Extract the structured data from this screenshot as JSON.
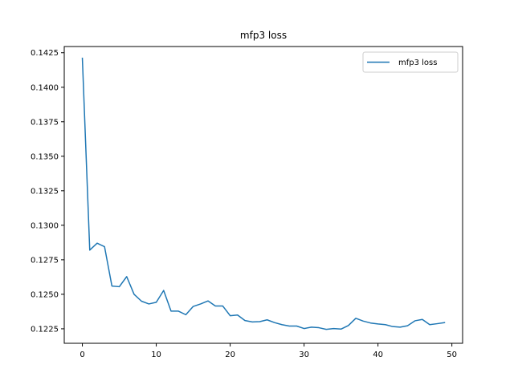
{
  "chart_data": {
    "type": "line",
    "title": "mfp3 loss",
    "xlabel": "",
    "ylabel": "",
    "xlim": [
      -2.45,
      51.45
    ],
    "ylim": [
      0.12145,
      0.14295
    ],
    "xticks": [
      0,
      10,
      20,
      30,
      40,
      50
    ],
    "yticks": [
      0.1225,
      0.125,
      0.1275,
      0.13,
      0.1325,
      0.135,
      0.1375,
      0.14,
      0.1425
    ],
    "ytick_labels": [
      "0.1225",
      "0.1250",
      "0.1275",
      "0.1300",
      "0.1325",
      "0.1350",
      "0.1375",
      "0.1400",
      "0.1425"
    ],
    "grid": false,
    "legend_position": "top-right",
    "series": [
      {
        "name": "mfp3 loss",
        "color": "#1f77b4",
        "x": [
          0,
          1,
          2,
          3,
          4,
          5,
          6,
          7,
          8,
          9,
          10,
          11,
          12,
          13,
          14,
          15,
          16,
          17,
          18,
          19,
          20,
          21,
          22,
          23,
          24,
          25,
          26,
          27,
          28,
          29,
          30,
          31,
          32,
          33,
          34,
          35,
          36,
          37,
          38,
          39,
          40,
          41,
          42,
          43,
          44,
          45,
          46,
          47,
          48,
          49
        ],
        "y": [
          0.1421,
          0.1282,
          0.1287,
          0.12845,
          0.1256,
          0.12555,
          0.12628,
          0.125,
          0.1245,
          0.1243,
          0.12442,
          0.12528,
          0.12378,
          0.12378,
          0.12352,
          0.12412,
          0.1243,
          0.12452,
          0.12415,
          0.12415,
          0.12345,
          0.1235,
          0.1231,
          0.123,
          0.12302,
          0.12315,
          0.12295,
          0.1228,
          0.1227,
          0.1227,
          0.12252,
          0.12262,
          0.12258,
          0.12246,
          0.12252,
          0.12248,
          0.12274,
          0.12326,
          0.12306,
          0.12292,
          0.12285,
          0.1228,
          0.12266,
          0.12262,
          0.12272,
          0.12308,
          0.12318,
          0.1228,
          0.12287,
          0.12295
        ]
      }
    ]
  }
}
